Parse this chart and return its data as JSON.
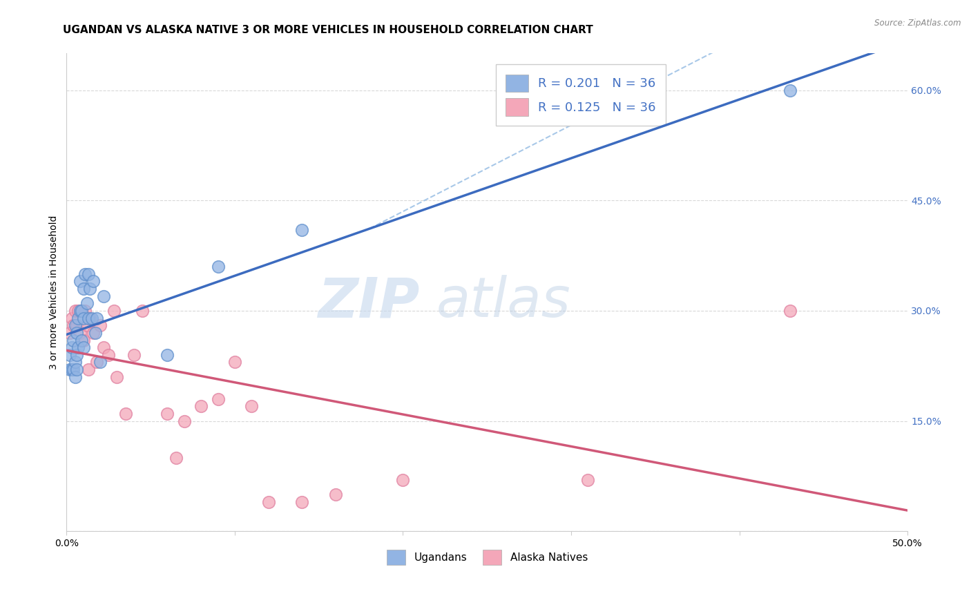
{
  "title": "UGANDAN VS ALASKA NATIVE 3 OR MORE VEHICLES IN HOUSEHOLD CORRELATION CHART",
  "source": "Source: ZipAtlas.com",
  "ylabel_label": "3 or more Vehicles in Household",
  "xlim": [
    0.0,
    0.5
  ],
  "ylim": [
    0.0,
    0.65
  ],
  "xticks": [
    0.0,
    0.5
  ],
  "xticklabels": [
    "0.0%",
    "50.0%"
  ],
  "yticks": [
    0.0,
    0.15,
    0.3,
    0.45,
    0.6
  ],
  "yticklabels_right": [
    "",
    "15.0%",
    "30.0%",
    "45.0%",
    "60.0%"
  ],
  "ugandan_color": "#92b4e3",
  "alaska_color": "#f4a7b9",
  "ugandan_edge_color": "#6090cc",
  "alaska_edge_color": "#e080a0",
  "trend_ugandan_color": "#3c6bbf",
  "trend_alaska_color": "#d05878",
  "trend_dashed_color": "#a8c8e8",
  "watermark_zip": "ZIP",
  "watermark_atlas": "atlas",
  "ugandan_x": [
    0.002,
    0.002,
    0.003,
    0.003,
    0.004,
    0.004,
    0.005,
    0.005,
    0.005,
    0.006,
    0.006,
    0.006,
    0.007,
    0.007,
    0.008,
    0.008,
    0.009,
    0.009,
    0.01,
    0.01,
    0.01,
    0.011,
    0.012,
    0.013,
    0.013,
    0.014,
    0.015,
    0.016,
    0.017,
    0.018,
    0.02,
    0.022,
    0.06,
    0.09,
    0.14,
    0.43
  ],
  "ugandan_y": [
    0.22,
    0.24,
    0.22,
    0.25,
    0.22,
    0.26,
    0.21,
    0.23,
    0.28,
    0.22,
    0.24,
    0.27,
    0.25,
    0.29,
    0.3,
    0.34,
    0.26,
    0.3,
    0.25,
    0.29,
    0.33,
    0.35,
    0.31,
    0.29,
    0.35,
    0.33,
    0.29,
    0.34,
    0.27,
    0.29,
    0.23,
    0.32,
    0.24,
    0.36,
    0.41,
    0.6
  ],
  "alaska_x": [
    0.002,
    0.003,
    0.004,
    0.005,
    0.006,
    0.007,
    0.008,
    0.009,
    0.01,
    0.011,
    0.012,
    0.013,
    0.014,
    0.016,
    0.018,
    0.02,
    0.022,
    0.025,
    0.028,
    0.03,
    0.035,
    0.04,
    0.045,
    0.06,
    0.065,
    0.07,
    0.08,
    0.09,
    0.1,
    0.11,
    0.12,
    0.14,
    0.16,
    0.2,
    0.31,
    0.43
  ],
  "alaska_y": [
    0.27,
    0.29,
    0.28,
    0.3,
    0.28,
    0.3,
    0.27,
    0.3,
    0.26,
    0.3,
    0.28,
    0.22,
    0.29,
    0.27,
    0.23,
    0.28,
    0.25,
    0.24,
    0.3,
    0.21,
    0.16,
    0.24,
    0.3,
    0.16,
    0.1,
    0.15,
    0.17,
    0.18,
    0.23,
    0.17,
    0.04,
    0.04,
    0.05,
    0.07,
    0.07,
    0.3
  ],
  "background_color": "#ffffff",
  "grid_color": "#d8d8d8",
  "tick_color": "#4472c4",
  "title_fontsize": 11,
  "axis_label_fontsize": 10,
  "tick_fontsize": 10,
  "legend_fontsize": 13
}
